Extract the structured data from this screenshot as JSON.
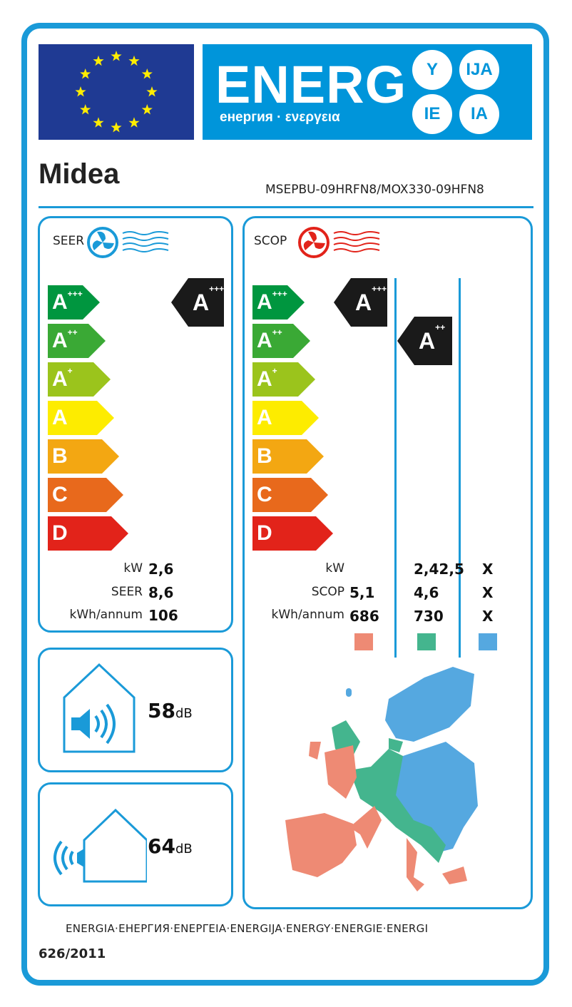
{
  "header": {
    "title": "ENERG",
    "subtitle": "енергия · ενεργεια",
    "suffixes": [
      "Y",
      "IJA",
      "IE",
      "IA"
    ],
    "eu_flag": "eu-flag-stars"
  },
  "brand": "Midea",
  "model": "MSEPBU-09HRFN8/MOX330-09HFN8",
  "classes": [
    {
      "letter": "A",
      "sup": "+++",
      "color": "#00963f"
    },
    {
      "letter": "A",
      "sup": "++",
      "color": "#3aa935"
    },
    {
      "letter": "A",
      "sup": "+",
      "color": "#9bc41c"
    },
    {
      "letter": "A",
      "sup": "",
      "color": "#fdec00"
    },
    {
      "letter": "B",
      "sup": "",
      "color": "#f3a712"
    },
    {
      "letter": "C",
      "sup": "",
      "color": "#e8691c"
    },
    {
      "letter": "D",
      "sup": "",
      "color": "#e2231a"
    }
  ],
  "cooling": {
    "label": "SEER",
    "icon": "fan-cold-icon",
    "class": {
      "letter": "A",
      "sup": "+++"
    },
    "rows": [
      {
        "label": "kW",
        "value": "2,6"
      },
      {
        "label": "SEER",
        "value": "8,6"
      },
      {
        "label": "kWh/annum",
        "value": "106"
      }
    ]
  },
  "heating": {
    "label": "SCOP",
    "icon": "fan-heat-icon",
    "classes": [
      {
        "letter": "A",
        "sup": "+++"
      },
      {
        "letter": "A",
        "sup": "++"
      }
    ],
    "row_labels": [
      "kW",
      "SCOP",
      "kWh/annum"
    ],
    "columns": [
      {
        "zone": "warmer",
        "color": "#ee8a74",
        "values": [
          "",
          "5,1",
          "686"
        ]
      },
      {
        "zone": "average",
        "color": "#44b58e",
        "values": [
          "2,42,5",
          "4,6",
          "730"
        ]
      },
      {
        "zone": "colder",
        "color": "#55a8e0",
        "values": [
          "X",
          "X",
          "X"
        ]
      }
    ]
  },
  "noise": [
    {
      "value": "58",
      "unit": "dB",
      "icon": "indoor-speaker-icon"
    },
    {
      "value": "64",
      "unit": "dB",
      "icon": "outdoor-speaker-icon"
    }
  ],
  "footer": "ENERGIA·ЕНЕРГИЯ·ΕΝΕΡΓΕΙΑ·ENERGIJA·ENERGY·ENERGIE·ENERGI",
  "regulation": "626/2011",
  "colors": {
    "accent": "#1a9ad8",
    "energy_blue": "#0095da",
    "flag": "#1f3a93"
  }
}
